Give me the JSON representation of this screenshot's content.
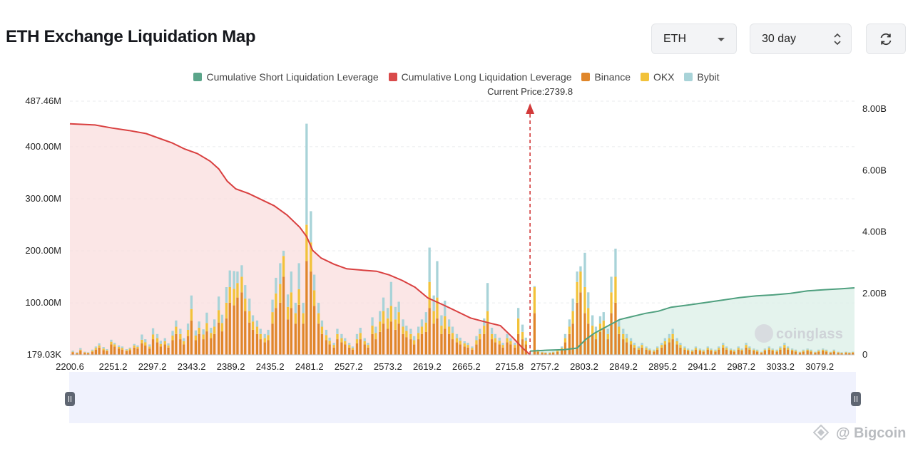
{
  "header": {
    "title": "ETH Exchange Liquidation Map",
    "symbol": "ETH",
    "range": "30 day"
  },
  "legend": [
    {
      "label": "Cumulative Short Liquidation Leverage",
      "color": "#5ba58a"
    },
    {
      "label": "Cumulative Long Liquidation Leverage",
      "color": "#d94a4a"
    },
    {
      "label": "Binance",
      "color": "#e0862a"
    },
    {
      "label": "OKX",
      "color": "#f2c23a"
    },
    {
      "label": "Bybit",
      "color": "#a8d3d8"
    }
  ],
  "current_price_label": "Current Price:2739.8",
  "watermark": "coinglass",
  "source_watermark": "@ Bigcoin",
  "chart_data": {
    "type": "bar",
    "current_price": 2739.8,
    "xlim": [
      2200.6,
      3120
    ],
    "x_ticks": [
      "2200.6",
      "2251.2",
      "2297.2",
      "2343.2",
      "2389.2",
      "2435.2",
      "2481.2",
      "2527.2",
      "2573.2",
      "2619.2",
      "2665.2",
      "2715.8",
      "2757.2",
      "2803.2",
      "2849.2",
      "2895.2",
      "2941.2",
      "2987.2",
      "3033.2",
      "3079.2"
    ],
    "y_left": {
      "ticks": [
        "179.03K",
        "100.00M",
        "200.00M",
        "300.00M",
        "400.00M",
        "487.46M"
      ],
      "min": 0.179,
      "max": 487.46,
      "unit": "M"
    },
    "y_right": {
      "ticks": [
        "0",
        "2.00B",
        "4.00B",
        "6.00B",
        "8.00B"
      ],
      "min": 0,
      "max": 8.0,
      "unit": "B"
    },
    "bar_series": [
      {
        "name": "Binance",
        "color": "#e0862a"
      },
      {
        "name": "OKX",
        "color": "#f2c23a"
      },
      {
        "name": "Bybit",
        "color": "#a8d3d8"
      }
    ],
    "bars": [
      [
        2204,
        5,
        1,
        2
      ],
      [
        2209,
        3,
        1,
        1
      ],
      [
        2213,
        8,
        2,
        3
      ],
      [
        2218,
        4,
        1,
        1
      ],
      [
        2222,
        3,
        1,
        1
      ],
      [
        2227,
        6,
        2,
        2
      ],
      [
        2231,
        10,
        3,
        3
      ],
      [
        2235,
        14,
        4,
        4
      ],
      [
        2240,
        9,
        3,
        3
      ],
      [
        2244,
        7,
        2,
        2
      ],
      [
        2249,
        20,
        5,
        4
      ],
      [
        2253,
        16,
        4,
        3
      ],
      [
        2258,
        12,
        3,
        3
      ],
      [
        2262,
        10,
        3,
        3
      ],
      [
        2267,
        7,
        2,
        2
      ],
      [
        2271,
        9,
        3,
        2
      ],
      [
        2276,
        14,
        4,
        3
      ],
      [
        2280,
        12,
        3,
        3
      ],
      [
        2285,
        22,
        7,
        10
      ],
      [
        2289,
        18,
        6,
        6
      ],
      [
        2294,
        12,
        4,
        4
      ],
      [
        2298,
        30,
        9,
        12
      ],
      [
        2303,
        24,
        8,
        8
      ],
      [
        2307,
        16,
        5,
        6
      ],
      [
        2312,
        20,
        6,
        6
      ],
      [
        2316,
        14,
        4,
        4
      ],
      [
        2321,
        28,
        9,
        9
      ],
      [
        2325,
        40,
        14,
        12
      ],
      [
        2330,
        30,
        10,
        10
      ],
      [
        2334,
        20,
        6,
        6
      ],
      [
        2339,
        36,
        12,
        12
      ],
      [
        2343,
        66,
        22,
        26
      ],
      [
        2348,
        28,
        9,
        10
      ],
      [
        2352,
        40,
        12,
        12
      ],
      [
        2357,
        30,
        9,
        10
      ],
      [
        2361,
        45,
        16,
        20
      ],
      [
        2366,
        32,
        10,
        10
      ],
      [
        2370,
        40,
        14,
        14
      ],
      [
        2375,
        62,
        24,
        26
      ],
      [
        2379,
        45,
        16,
        16
      ],
      [
        2384,
        70,
        30,
        30
      ],
      [
        2388,
        100,
        30,
        32
      ],
      [
        2393,
        95,
        32,
        34
      ],
      [
        2397,
        110,
        28,
        22
      ],
      [
        2402,
        120,
        30,
        22
      ],
      [
        2406,
        84,
        24,
        26
      ],
      [
        2411,
        62,
        22,
        24
      ],
      [
        2415,
        48,
        16,
        12
      ],
      [
        2420,
        40,
        14,
        12
      ],
      [
        2424,
        30,
        10,
        10
      ],
      [
        2429,
        24,
        8,
        8
      ],
      [
        2433,
        28,
        10,
        10
      ],
      [
        2438,
        60,
        22,
        24
      ],
      [
        2442,
        90,
        28,
        30
      ],
      [
        2447,
        100,
        36,
        40
      ],
      [
        2451,
        150,
        40,
        10
      ],
      [
        2456,
        68,
        24,
        24
      ],
      [
        2460,
        90,
        30,
        40
      ],
      [
        2465,
        60,
        20,
        20
      ],
      [
        2469,
        96,
        30,
        50
      ],
      [
        2474,
        60,
        20,
        20
      ],
      [
        2478,
        180,
        70,
        194
      ],
      [
        2483,
        160,
        56,
        60
      ],
      [
        2487,
        94,
        30,
        30
      ],
      [
        2492,
        60,
        20,
        20
      ],
      [
        2496,
        40,
        14,
        12
      ],
      [
        2501,
        28,
        10,
        10
      ],
      [
        2505,
        20,
        7,
        6
      ],
      [
        2510,
        14,
        5,
        4
      ],
      [
        2514,
        30,
        10,
        10
      ],
      [
        2519,
        24,
        8,
        8
      ],
      [
        2523,
        20,
        6,
        6
      ],
      [
        2528,
        14,
        5,
        4
      ],
      [
        2532,
        10,
        3,
        3
      ],
      [
        2537,
        22,
        8,
        10
      ],
      [
        2541,
        30,
        12,
        10
      ],
      [
        2546,
        20,
        6,
        6
      ],
      [
        2550,
        14,
        5,
        4
      ],
      [
        2555,
        40,
        16,
        16
      ],
      [
        2559,
        30,
        12,
        12
      ],
      [
        2564,
        44,
        20,
        20
      ],
      [
        2568,
        60,
        24,
        26
      ],
      [
        2573,
        50,
        20,
        20
      ],
      [
        2577,
        64,
        30,
        46
      ],
      [
        2582,
        48,
        20,
        24
      ],
      [
        2586,
        60,
        22,
        20
      ],
      [
        2591,
        40,
        14,
        14
      ],
      [
        2595,
        34,
        12,
        10
      ],
      [
        2600,
        30,
        10,
        10
      ],
      [
        2604,
        20,
        8,
        8
      ],
      [
        2609,
        30,
        12,
        12
      ],
      [
        2613,
        40,
        14,
        14
      ],
      [
        2618,
        44,
        18,
        20
      ],
      [
        2622,
        90,
        50,
        66
      ],
      [
        2627,
        60,
        24,
        30
      ],
      [
        2631,
        70,
        40,
        70
      ],
      [
        2636,
        40,
        16,
        20
      ],
      [
        2640,
        50,
        24,
        30
      ],
      [
        2645,
        40,
        14,
        14
      ],
      [
        2649,
        30,
        12,
        12
      ],
      [
        2654,
        24,
        8,
        8
      ],
      [
        2658,
        20,
        7,
        6
      ],
      [
        2663,
        16,
        6,
        4
      ],
      [
        2667,
        14,
        5,
        4
      ],
      [
        2672,
        10,
        3,
        3
      ],
      [
        2677,
        20,
        8,
        8
      ],
      [
        2681,
        30,
        10,
        10
      ],
      [
        2686,
        40,
        16,
        14
      ],
      [
        2690,
        60,
        24,
        54
      ],
      [
        2695,
        30,
        10,
        12
      ],
      [
        2699,
        24,
        8,
        8
      ],
      [
        2704,
        20,
        7,
        6
      ],
      [
        2708,
        14,
        5,
        4
      ],
      [
        2713,
        24,
        8,
        8
      ],
      [
        2717,
        20,
        6,
        6
      ],
      [
        2722,
        14,
        5,
        4
      ],
      [
        2726,
        40,
        30,
        20
      ],
      [
        2731,
        30,
        14,
        14
      ],
      [
        2735,
        20,
        7,
        6
      ],
      [
        2745,
        80,
        50,
        2
      ],
      [
        2749,
        6,
        2,
        2
      ],
      [
        2754,
        4,
        1,
        1
      ],
      [
        2758,
        3,
        1,
        1
      ],
      [
        2763,
        3,
        1,
        1
      ],
      [
        2767,
        4,
        1,
        1
      ],
      [
        2772,
        6,
        2,
        2
      ],
      [
        2777,
        10,
        3,
        3
      ],
      [
        2781,
        24,
        8,
        8
      ],
      [
        2786,
        40,
        14,
        14
      ],
      [
        2790,
        60,
        24,
        24
      ],
      [
        2795,
        100,
        40,
        20
      ],
      [
        2799,
        120,
        40,
        10
      ],
      [
        2804,
        80,
        50,
        66
      ],
      [
        2808,
        60,
        30,
        30
      ],
      [
        2813,
        40,
        16,
        20
      ],
      [
        2817,
        30,
        12,
        12
      ],
      [
        2822,
        44,
        16,
        14
      ],
      [
        2826,
        50,
        16,
        16
      ],
      [
        2831,
        30,
        10,
        10
      ],
      [
        2835,
        80,
        40,
        30
      ],
      [
        2840,
        100,
        50,
        54
      ],
      [
        2844,
        40,
        14,
        14
      ],
      [
        2849,
        30,
        10,
        10
      ],
      [
        2853,
        24,
        8,
        8
      ],
      [
        2858,
        20,
        6,
        6
      ],
      [
        2862,
        14,
        5,
        4
      ],
      [
        2867,
        10,
        3,
        3
      ],
      [
        2871,
        14,
        5,
        4
      ],
      [
        2876,
        10,
        3,
        3
      ],
      [
        2880,
        8,
        2,
        2
      ],
      [
        2885,
        6,
        2,
        2
      ],
      [
        2889,
        10,
        3,
        3
      ],
      [
        2894,
        14,
        5,
        4
      ],
      [
        2898,
        20,
        6,
        6
      ],
      [
        2903,
        24,
        8,
        8
      ],
      [
        2907,
        30,
        10,
        10
      ],
      [
        2912,
        20,
        6,
        6
      ],
      [
        2916,
        14,
        5,
        4
      ],
      [
        2921,
        10,
        3,
        3
      ],
      [
        2925,
        8,
        2,
        2
      ],
      [
        2930,
        6,
        2,
        2
      ],
      [
        2934,
        10,
        3,
        3
      ],
      [
        2939,
        8,
        2,
        2
      ],
      [
        2943,
        6,
        2,
        2
      ],
      [
        2948,
        10,
        3,
        3
      ],
      [
        2952,
        8,
        2,
        2
      ],
      [
        2957,
        6,
        2,
        2
      ],
      [
        2961,
        10,
        3,
        3
      ],
      [
        2966,
        14,
        5,
        4
      ],
      [
        2970,
        10,
        3,
        3
      ],
      [
        2975,
        8,
        2,
        2
      ],
      [
        2979,
        6,
        2,
        2
      ],
      [
        2984,
        10,
        3,
        3
      ],
      [
        2988,
        8,
        2,
        2
      ],
      [
        2993,
        14,
        5,
        4
      ],
      [
        2997,
        10,
        3,
        3
      ],
      [
        3002,
        8,
        2,
        2
      ],
      [
        3006,
        6,
        2,
        2
      ],
      [
        3011,
        4,
        1,
        1
      ],
      [
        3015,
        8,
        2,
        2
      ],
      [
        3020,
        10,
        3,
        3
      ],
      [
        3024,
        8,
        2,
        2
      ],
      [
        3029,
        6,
        2,
        2
      ],
      [
        3033,
        10,
        3,
        3
      ],
      [
        3038,
        14,
        5,
        4
      ],
      [
        3042,
        10,
        3,
        3
      ],
      [
        3047,
        8,
        2,
        2
      ],
      [
        3051,
        6,
        2,
        2
      ],
      [
        3056,
        4,
        1,
        1
      ],
      [
        3060,
        6,
        2,
        2
      ],
      [
        3065,
        8,
        2,
        2
      ],
      [
        3069,
        6,
        2,
        2
      ],
      [
        3074,
        4,
        1,
        1
      ],
      [
        3078,
        6,
        2,
        2
      ],
      [
        3083,
        8,
        2,
        2
      ],
      [
        3087,
        6,
        2,
        2
      ],
      [
        3092,
        4,
        1,
        1
      ],
      [
        3096,
        6,
        2,
        2
      ],
      [
        3101,
        4,
        1,
        1
      ],
      [
        3105,
        3,
        1,
        1
      ],
      [
        3110,
        4,
        1,
        1
      ],
      [
        3114,
        3,
        1,
        1
      ],
      [
        3118,
        4,
        1,
        1
      ]
    ],
    "long_cumulative_B": [
      [
        2200.6,
        7.52
      ],
      [
        2230,
        7.48
      ],
      [
        2250,
        7.38
      ],
      [
        2270,
        7.3
      ],
      [
        2290,
        7.2
      ],
      [
        2305,
        7.05
      ],
      [
        2320,
        6.9
      ],
      [
        2335,
        6.7
      ],
      [
        2350,
        6.55
      ],
      [
        2365,
        6.3
      ],
      [
        2375,
        6.05
      ],
      [
        2385,
        5.65
      ],
      [
        2395,
        5.4
      ],
      [
        2410,
        5.25
      ],
      [
        2425,
        5.05
      ],
      [
        2440,
        4.85
      ],
      [
        2455,
        4.55
      ],
      [
        2470,
        4.15
      ],
      [
        2478,
        3.85
      ],
      [
        2485,
        3.4
      ],
      [
        2495,
        3.15
      ],
      [
        2510,
        2.95
      ],
      [
        2525,
        2.8
      ],
      [
        2545,
        2.75
      ],
      [
        2560,
        2.72
      ],
      [
        2575,
        2.6
      ],
      [
        2590,
        2.42
      ],
      [
        2605,
        2.2
      ],
      [
        2620,
        1.85
      ],
      [
        2640,
        1.6
      ],
      [
        2655,
        1.4
      ],
      [
        2670,
        1.2
      ],
      [
        2690,
        1.05
      ],
      [
        2705,
        0.95
      ],
      [
        2720,
        0.55
      ],
      [
        2730,
        0.25
      ],
      [
        2739.8,
        0.0
      ]
    ],
    "short_cumulative_B": [
      [
        2739.8,
        0.12
      ],
      [
        2760,
        0.15
      ],
      [
        2780,
        0.17
      ],
      [
        2795,
        0.22
      ],
      [
        2805,
        0.5
      ],
      [
        2815,
        0.7
      ],
      [
        2825,
        0.85
      ],
      [
        2835,
        1.0
      ],
      [
        2845,
        1.15
      ],
      [
        2860,
        1.25
      ],
      [
        2875,
        1.35
      ],
      [
        2890,
        1.42
      ],
      [
        2905,
        1.55
      ],
      [
        2925,
        1.62
      ],
      [
        2945,
        1.7
      ],
      [
        2965,
        1.78
      ],
      [
        2985,
        1.86
      ],
      [
        3005,
        1.92
      ],
      [
        3025,
        1.95
      ],
      [
        3045,
        2.0
      ],
      [
        3065,
        2.08
      ],
      [
        3085,
        2.12
      ],
      [
        3105,
        2.15
      ],
      [
        3120,
        2.18
      ]
    ]
  }
}
